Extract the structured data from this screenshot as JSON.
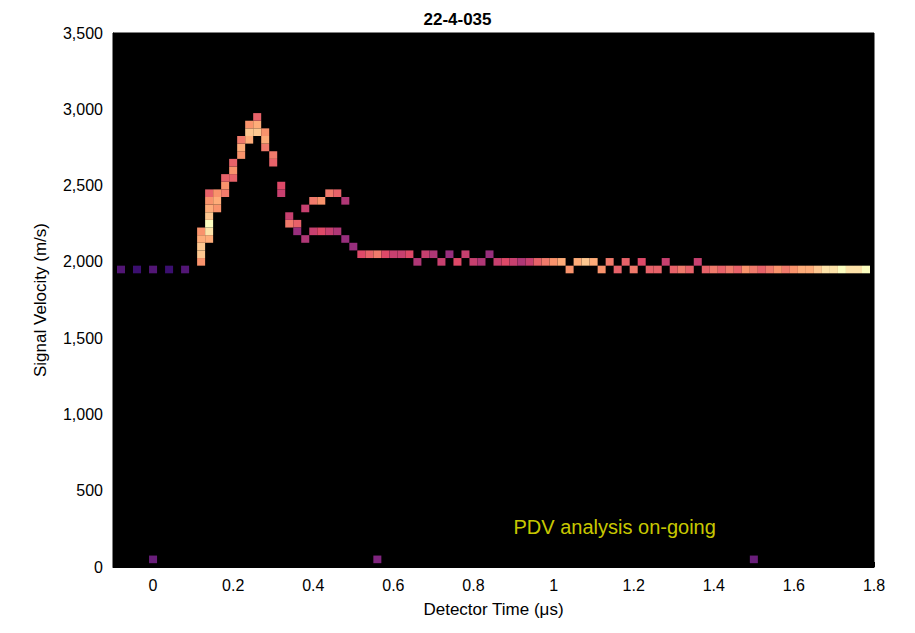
{
  "chart_data": {
    "type": "heatmap",
    "title": "22-4-035",
    "x_label": "Detector Time (μs)",
    "y_label": "Signal Velocity (m/s)",
    "xlim": [
      -0.1,
      1.8
    ],
    "xticks": [
      0,
      0.2,
      0.4,
      0.6,
      0.8,
      1,
      1.2,
      1.4,
      1.6,
      1.8
    ],
    "ylim": [
      0,
      3500
    ],
    "yticks": [
      0,
      500,
      1000,
      1500,
      2000,
      2500,
      3000,
      3500
    ],
    "grid": false,
    "annotations": [
      {
        "text": "PDV analysis on-going",
        "x": 0.9,
        "y": 260
      }
    ],
    "cells": [
      [
        -0.08,
        1950,
        0.35
      ],
      [
        -0.04,
        1950,
        0.3
      ],
      [
        0.0,
        1950,
        0.35
      ],
      [
        0.04,
        1950,
        0.3
      ],
      [
        0.08,
        1950,
        0.35
      ],
      [
        0.12,
        2000,
        0.8
      ],
      [
        0.12,
        2050,
        0.9
      ],
      [
        0.12,
        2100,
        0.9
      ],
      [
        0.12,
        2150,
        0.85
      ],
      [
        0.12,
        2200,
        0.8
      ],
      [
        0.14,
        2150,
        0.85
      ],
      [
        0.14,
        2200,
        0.95
      ],
      [
        0.14,
        2250,
        1
      ],
      [
        0.14,
        2300,
        0.9
      ],
      [
        0.14,
        2350,
        0.85
      ],
      [
        0.14,
        2400,
        0.8
      ],
      [
        0.14,
        2450,
        0.7
      ],
      [
        0.16,
        2350,
        0.8
      ],
      [
        0.16,
        2400,
        0.85
      ],
      [
        0.16,
        2450,
        0.8
      ],
      [
        0.18,
        2450,
        0.75
      ],
      [
        0.18,
        2500,
        0.8
      ],
      [
        0.18,
        2550,
        0.7
      ],
      [
        0.2,
        2550,
        0.7
      ],
      [
        0.2,
        2600,
        0.8
      ],
      [
        0.2,
        2650,
        0.7
      ],
      [
        0.22,
        2700,
        0.8
      ],
      [
        0.22,
        2750,
        0.85
      ],
      [
        0.22,
        2800,
        0.75
      ],
      [
        0.24,
        2800,
        0.85
      ],
      [
        0.24,
        2850,
        0.9
      ],
      [
        0.24,
        2900,
        0.8
      ],
      [
        0.26,
        2850,
        0.9
      ],
      [
        0.26,
        2900,
        0.85
      ],
      [
        0.26,
        2950,
        0.7
      ],
      [
        0.28,
        2750,
        0.75
      ],
      [
        0.28,
        2800,
        0.85
      ],
      [
        0.28,
        2850,
        0.8
      ],
      [
        0.3,
        2650,
        0.7
      ],
      [
        0.3,
        2700,
        0.75
      ],
      [
        0.32,
        2450,
        0.6
      ],
      [
        0.32,
        2500,
        0.65
      ],
      [
        0.34,
        2250,
        0.75
      ],
      [
        0.34,
        2300,
        0.6
      ],
      [
        0.36,
        2250,
        0.7
      ],
      [
        0.36,
        2200,
        0.5
      ],
      [
        0.38,
        2350,
        0.6
      ],
      [
        0.38,
        2150,
        0.55
      ],
      [
        0.4,
        2400,
        0.75
      ],
      [
        0.4,
        2200,
        0.6
      ],
      [
        0.42,
        2400,
        0.8
      ],
      [
        0.42,
        2200,
        0.65
      ],
      [
        0.44,
        2450,
        0.75
      ],
      [
        0.44,
        2200,
        0.6
      ],
      [
        0.46,
        2450,
        0.7
      ],
      [
        0.46,
        2200,
        0.55
      ],
      [
        0.48,
        2400,
        0.55
      ],
      [
        0.48,
        2150,
        0.5
      ],
      [
        0.5,
        2100,
        0.5
      ],
      [
        0.52,
        2050,
        0.65
      ],
      [
        0.54,
        2050,
        0.7
      ],
      [
        0.56,
        2050,
        0.75
      ],
      [
        0.58,
        2050,
        0.65
      ],
      [
        0.6,
        2050,
        0.6
      ],
      [
        0.62,
        2050,
        0.6
      ],
      [
        0.64,
        2050,
        0.65
      ],
      [
        0.66,
        2000,
        0.55
      ],
      [
        0.68,
        2050,
        0.6
      ],
      [
        0.7,
        2050,
        0.55
      ],
      [
        0.72,
        2000,
        0.6
      ],
      [
        0.74,
        2050,
        0.5
      ],
      [
        0.76,
        2000,
        0.65
      ],
      [
        0.78,
        2050,
        0.6
      ],
      [
        0.8,
        2000,
        0.6
      ],
      [
        0.82,
        2000,
        0.55
      ],
      [
        0.84,
        2050,
        0.5
      ],
      [
        0.86,
        2000,
        0.6
      ],
      [
        0.88,
        2000,
        0.65
      ],
      [
        0.9,
        2000,
        0.6
      ],
      [
        0.92,
        2000,
        0.55
      ],
      [
        0.94,
        2000,
        0.6
      ],
      [
        0.96,
        2000,
        0.7
      ],
      [
        0.98,
        2000,
        0.75
      ],
      [
        1.0,
        2000,
        0.8
      ],
      [
        1.02,
        2000,
        0.85
      ],
      [
        1.04,
        1950,
        0.8
      ],
      [
        1.06,
        2000,
        0.85
      ],
      [
        1.08,
        2000,
        0.9
      ],
      [
        1.1,
        2000,
        0.85
      ],
      [
        1.12,
        1950,
        0.8
      ],
      [
        1.14,
        2000,
        0.75
      ],
      [
        1.16,
        1950,
        0.7
      ],
      [
        1.18,
        2000,
        0.7
      ],
      [
        1.2,
        1950,
        0.75
      ],
      [
        1.22,
        2000,
        0.65
      ],
      [
        1.24,
        1950,
        0.7
      ],
      [
        1.26,
        1950,
        0.7
      ],
      [
        1.28,
        2000,
        0.6
      ],
      [
        1.3,
        1950,
        0.7
      ],
      [
        1.32,
        1950,
        0.75
      ],
      [
        1.34,
        1950,
        0.7
      ],
      [
        1.36,
        2000,
        0.6
      ],
      [
        1.38,
        1950,
        0.7
      ],
      [
        1.4,
        1950,
        0.75
      ],
      [
        1.42,
        1950,
        0.7
      ],
      [
        1.44,
        1950,
        0.75
      ],
      [
        1.46,
        1950,
        0.7
      ],
      [
        1.48,
        1950,
        0.8
      ],
      [
        1.5,
        1950,
        0.75
      ],
      [
        1.52,
        1950,
        0.7
      ],
      [
        1.54,
        1950,
        0.75
      ],
      [
        1.56,
        1950,
        0.8
      ],
      [
        1.58,
        1950,
        0.75
      ],
      [
        1.6,
        1950,
        0.8
      ],
      [
        1.62,
        1950,
        0.85
      ],
      [
        1.64,
        1950,
        0.85
      ],
      [
        1.66,
        1950,
        0.9
      ],
      [
        1.68,
        1950,
        0.95
      ],
      [
        1.7,
        1950,
        0.95
      ],
      [
        1.72,
        1950,
        1
      ],
      [
        1.74,
        1950,
        0.95
      ],
      [
        1.76,
        1950,
        0.95
      ],
      [
        1.78,
        1950,
        1
      ],
      [
        0.0,
        50,
        0.4
      ],
      [
        0.56,
        50,
        0.45
      ],
      [
        1.5,
        50,
        0.4
      ]
    ]
  }
}
